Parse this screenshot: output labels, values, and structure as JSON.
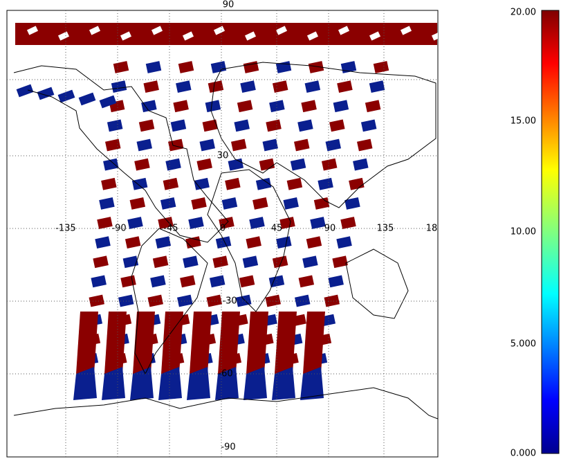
{
  "map": {
    "top_label": "90",
    "bottom_label": "-90",
    "lon_labels": [
      "-135",
      "-90",
      "-45",
      "0",
      "45",
      "90",
      "135",
      "18"
    ],
    "lat_labels": [
      "30",
      "-30",
      "-60"
    ],
    "colorbar_labels": [
      "20.00",
      "15.00",
      "10.00",
      "5.000",
      "0.000"
    ]
  }
}
